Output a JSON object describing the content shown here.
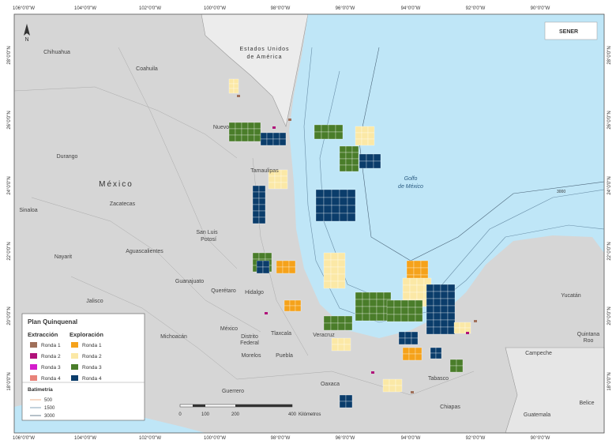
{
  "logo": "SENER",
  "north": "N",
  "lon_labels": [
    "106°0'0\"W",
    "104°0'0\"W",
    "102°0'0\"W",
    "100°0'0\"W",
    "98°0'0\"W",
    "96°0'0\"W",
    "94°0'0\"W",
    "92°0'0\"W",
    "90°0'0\"W"
  ],
  "lat_labels": [
    "28°0'0\"N",
    "26°0'0\"N",
    "24°0'0\"N",
    "22°0'0\"N",
    "20°0'0\"N",
    "18°0'0\"N"
  ],
  "country_usa": [
    "Estados Unidos",
    "de América"
  ],
  "country_mexico": "México",
  "gulf": [
    "Golfo",
    "de México"
  ],
  "isobath_label": "3000",
  "places": [
    "Chihuahua",
    "Coahuila",
    "Nuevo",
    "Durango",
    "Sinaloa",
    "Zacatecas",
    "Tamaulipas",
    "San Luis",
    "Potosí",
    "Nayarit",
    "Aguascalientes",
    "Jalisco",
    "Guanajuato",
    "Querétaro",
    "Hidalgo",
    "Michoacán",
    "México",
    "Distrito",
    "Federal",
    "Tlaxcala",
    "Morelos",
    "Puebla",
    "Veracruz",
    "Guerrero",
    "Oaxaca",
    "Tabasco",
    "Chiapas",
    "Campeche",
    "Yucatán",
    "Quintana",
    "Roo",
    "Guatemala",
    "Belice"
  ],
  "legend": {
    "title": "Plan Quinquenal",
    "extraction": {
      "title": "Extracción",
      "items": [
        "Ronda 1",
        "Ronda 2",
        "Ronda 3",
        "Ronda 4"
      ]
    },
    "exploration": {
      "title": "Exploración",
      "items": [
        "Ronda 1",
        "Ronda 2",
        "Ronda 3",
        "Ronda 4"
      ]
    },
    "bathymetry": {
      "title": "Batimetría",
      "items": [
        "500",
        "1500",
        "3000"
      ]
    }
  },
  "scale": {
    "ticks": [
      "0",
      "100",
      "200",
      "400"
    ],
    "unit": "Kilómetros"
  }
}
